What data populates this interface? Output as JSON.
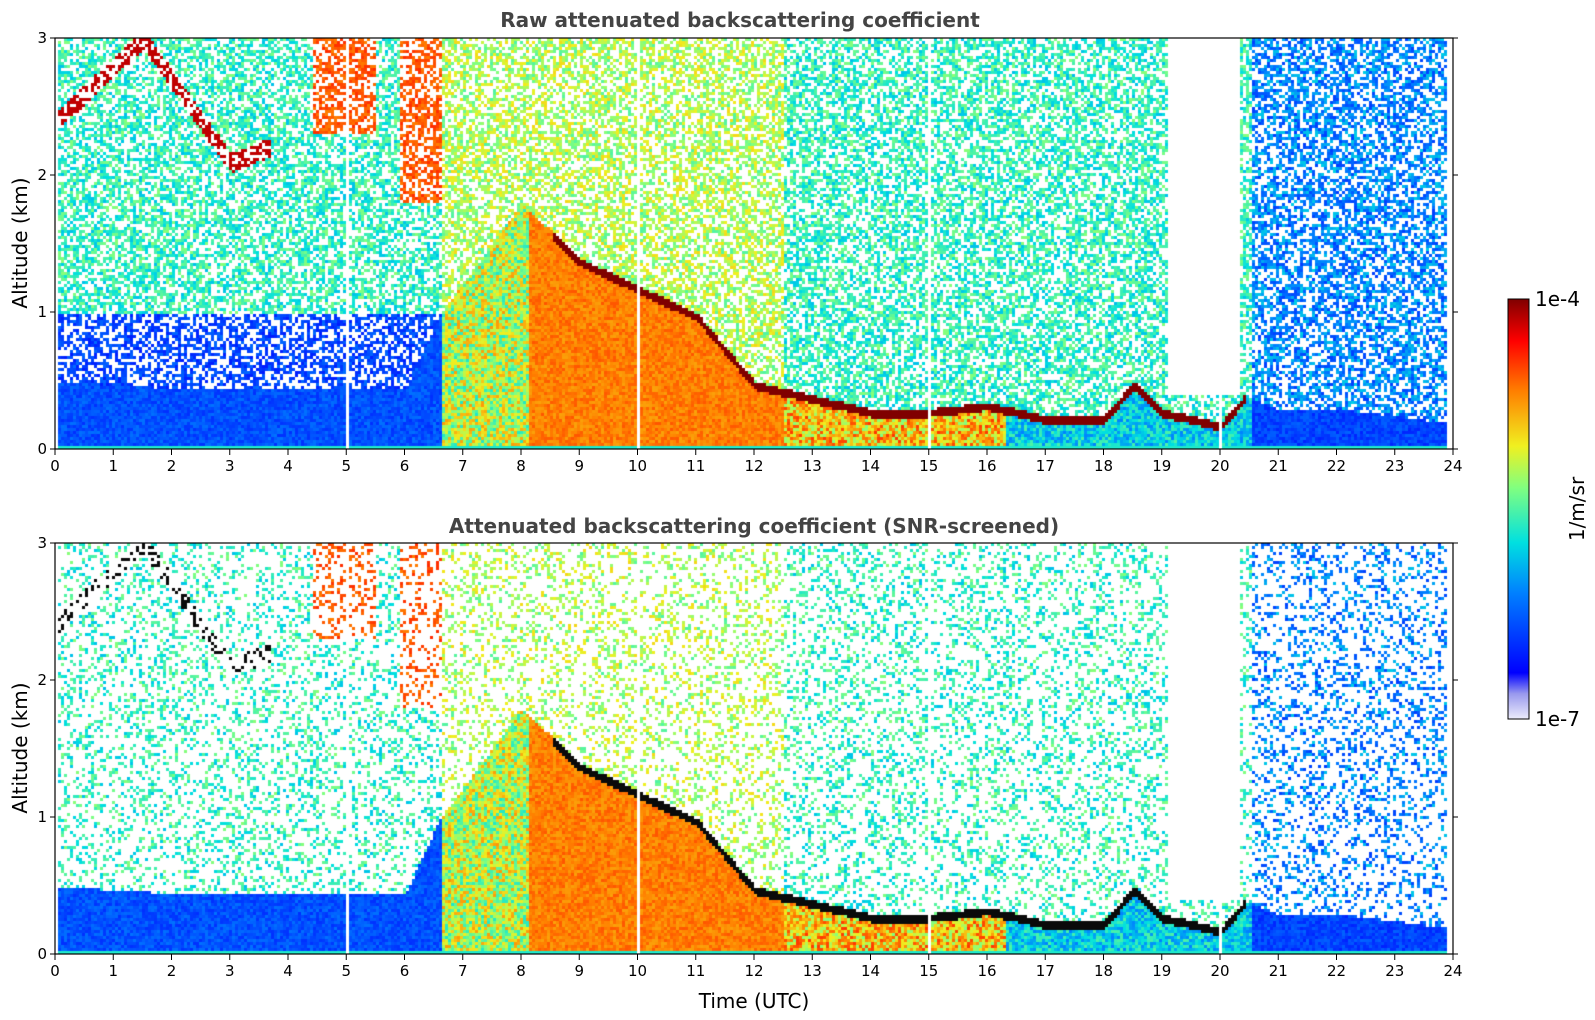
{
  "chart_data": [
    {
      "type": "heatmap",
      "title": "Raw attenuated backscattering coefficient",
      "xlabel": "",
      "ylabel": "Altitude (km)",
      "xlim": [
        0,
        24
      ],
      "ylim": [
        0,
        3
      ],
      "xticks": [
        "0",
        "1",
        "2",
        "3",
        "4",
        "5",
        "6",
        "7",
        "8",
        "9",
        "10",
        "11",
        "12",
        "13",
        "14",
        "15",
        "16",
        "17",
        "18",
        "19",
        "20",
        "21",
        "22",
        "23",
        "24"
      ],
      "yticks": [
        "0",
        "1",
        "2",
        "3"
      ],
      "colormap": "jet",
      "features": [
        {
          "name": "boundary layer top",
          "points": [
            [
              0,
              0.5
            ],
            [
              2,
              0.45
            ],
            [
              4,
              0.45
            ],
            [
              6,
              0.45
            ],
            [
              6.6,
              1.0
            ],
            [
              8,
              1.8
            ],
            [
              9,
              1.4
            ],
            [
              10,
              1.2
            ],
            [
              11,
              1.0
            ],
            [
              12,
              0.5
            ],
            [
              13,
              0.4
            ],
            [
              14,
              0.3
            ],
            [
              15,
              0.3
            ],
            [
              16,
              0.35
            ],
            [
              17,
              0.25
            ],
            [
              18,
              0.25
            ],
            [
              18.5,
              0.5
            ],
            [
              19,
              0.3
            ],
            [
              20,
              0.2
            ],
            [
              20.4,
              0.4
            ],
            [
              21,
              0.3
            ],
            [
              22,
              0.3
            ],
            [
              23,
              0.25
            ],
            [
              23.8,
              0.2
            ]
          ]
        },
        {
          "name": "elevated layer",
          "points": [
            [
              0,
              2.4
            ],
            [
              0.5,
              2.6
            ],
            [
              1.5,
              3.0
            ],
            [
              3.0,
              2.1
            ],
            [
              3.6,
              2.2
            ]
          ]
        }
      ]
    },
    {
      "type": "heatmap",
      "title": "Attenuated backscattering coefficient (SNR-screened)",
      "xlabel": "Time (UTC)",
      "ylabel": "Altitude (km)",
      "xlim": [
        0,
        24
      ],
      "ylim": [
        0,
        3
      ],
      "xticks": [
        "0",
        "1",
        "2",
        "3",
        "4",
        "5",
        "6",
        "7",
        "8",
        "9",
        "10",
        "11",
        "12",
        "13",
        "14",
        "15",
        "16",
        "17",
        "18",
        "19",
        "20",
        "21",
        "22",
        "23",
        "24"
      ],
      "yticks": [
        "0",
        "1",
        "2",
        "3"
      ],
      "colormap": "jet",
      "screened": true
    }
  ],
  "colorbar": {
    "label": "1/m/sr",
    "max_label": "1e-4",
    "min_label": "1e-7",
    "scale": "log",
    "range": [
      1e-07,
      0.0001
    ]
  }
}
